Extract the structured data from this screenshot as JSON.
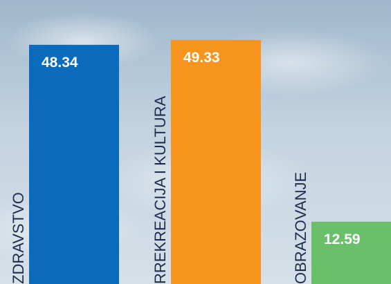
{
  "chart_data": {
    "type": "bar",
    "categories": [
      "ZDRAVSTVO",
      "RREKREACIJA I KULTURA",
      "OBRAZOVANJE"
    ],
    "values": [
      48.34,
      49.33,
      12.59
    ],
    "colors": [
      "#0a6bbd",
      "#f7941d",
      "#6cbf6a"
    ],
    "ylim": [
      0,
      57.4
    ]
  }
}
